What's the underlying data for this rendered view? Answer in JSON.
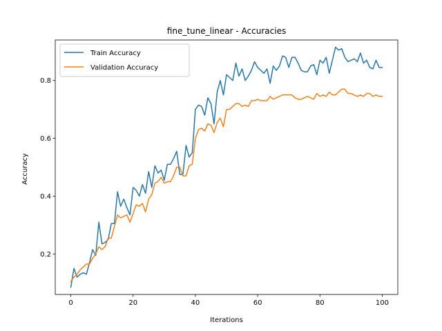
{
  "chart_data": {
    "type": "line",
    "title": "fine_tune_linear - Accuracies",
    "xlabel": "Iterations",
    "ylabel": "Accuracy",
    "xlim": [
      -5,
      105
    ],
    "ylim": [
      0.06,
      0.94
    ],
    "xticks": [
      0,
      20,
      40,
      60,
      80,
      100
    ],
    "yticks": [
      0.2,
      0.4,
      0.6,
      0.8
    ],
    "xtick_labels": [
      "0",
      "20",
      "40",
      "60",
      "80",
      "100"
    ],
    "ytick_labels": [
      "0.2",
      "0.4",
      "0.6",
      "0.8"
    ],
    "grid": false,
    "legend_position": "top-left",
    "series": [
      {
        "name": "Train Accuracy",
        "color": "#1f77b4",
        "values": [
          0.085,
          0.15,
          0.12,
          0.13,
          0.135,
          0.13,
          0.17,
          0.215,
          0.195,
          0.31,
          0.235,
          0.24,
          0.25,
          0.305,
          0.305,
          0.415,
          0.365,
          0.39,
          0.36,
          0.335,
          0.43,
          0.42,
          0.4,
          0.44,
          0.41,
          0.485,
          0.43,
          0.505,
          0.48,
          0.49,
          0.455,
          0.51,
          0.51,
          0.53,
          0.555,
          0.475,
          0.475,
          0.575,
          0.535,
          0.55,
          0.7,
          0.715,
          0.71,
          0.68,
          0.74,
          0.72,
          0.65,
          0.76,
          0.8,
          0.75,
          0.82,
          0.81,
          0.8,
          0.86,
          0.815,
          0.84,
          0.8,
          0.815,
          0.835,
          0.865,
          0.845,
          0.835,
          0.825,
          0.84,
          0.79,
          0.85,
          0.835,
          0.85,
          0.885,
          0.88,
          0.845,
          0.88,
          0.88,
          0.86,
          0.835,
          0.83,
          0.83,
          0.85,
          0.855,
          0.82,
          0.87,
          0.86,
          0.88,
          0.825,
          0.87,
          0.915,
          0.905,
          0.91,
          0.88,
          0.865,
          0.87,
          0.875,
          0.865,
          0.895,
          0.86,
          0.87,
          0.845,
          0.84,
          0.87,
          0.845,
          0.845
        ]
      },
      {
        "name": "Validation Accuracy",
        "color": "#ff7f0e",
        "values": [
          0.105,
          0.12,
          0.13,
          0.145,
          0.155,
          0.165,
          0.165,
          0.185,
          0.2,
          0.225,
          0.215,
          0.225,
          0.255,
          0.255,
          0.295,
          0.335,
          0.325,
          0.33,
          0.335,
          0.31,
          0.34,
          0.37,
          0.365,
          0.375,
          0.345,
          0.39,
          0.405,
          0.445,
          0.45,
          0.465,
          0.445,
          0.45,
          0.45,
          0.47,
          0.5,
          0.5,
          0.47,
          0.47,
          0.505,
          0.51,
          0.6,
          0.63,
          0.635,
          0.625,
          0.65,
          0.645,
          0.62,
          0.655,
          0.67,
          0.64,
          0.7,
          0.7,
          0.71,
          0.72,
          0.72,
          0.71,
          0.715,
          0.71,
          0.73,
          0.73,
          0.735,
          0.73,
          0.73,
          0.73,
          0.745,
          0.735,
          0.74,
          0.745,
          0.75,
          0.75,
          0.75,
          0.75,
          0.74,
          0.735,
          0.735,
          0.74,
          0.745,
          0.74,
          0.735,
          0.755,
          0.745,
          0.75,
          0.745,
          0.76,
          0.75,
          0.75,
          0.76,
          0.77,
          0.77,
          0.755,
          0.755,
          0.75,
          0.745,
          0.75,
          0.745,
          0.755,
          0.755,
          0.745,
          0.75,
          0.745,
          0.745
        ]
      }
    ]
  }
}
